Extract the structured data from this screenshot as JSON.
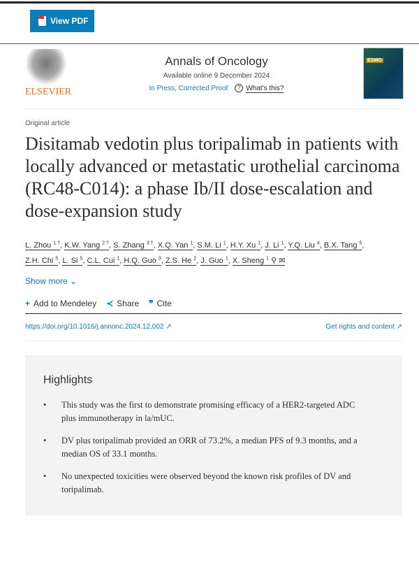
{
  "toolbar": {
    "view_pdf": "View PDF"
  },
  "header": {
    "publisher": "ELSEVIER",
    "journal": "Annals of Oncology",
    "available": "Available online 9 December 2024",
    "status": "In Press, Corrected Proof",
    "whats_this": "What's this?",
    "cover_label": "ESMO"
  },
  "article": {
    "type": "Original article",
    "title": "Disitamab vedotin plus toripalimab in patients with locally advanced or metastatic urothelial carcinoma (RC48-C014): a phase Ib/II dose-escalation and dose-expansion study",
    "authors": [
      {
        "name": "L. Zhou",
        "sup": "1 †"
      },
      {
        "name": "K.W. Yang",
        "sup": "2 †"
      },
      {
        "name": "S. Zhang",
        "sup": "3 †"
      },
      {
        "name": "X.Q. Yan",
        "sup": "1"
      },
      {
        "name": "S.M. Li",
        "sup": "1"
      },
      {
        "name": "H.Y. Xu",
        "sup": "1"
      },
      {
        "name": "J. Li",
        "sup": "1"
      },
      {
        "name": "Y.Q. Liu",
        "sup": "4"
      },
      {
        "name": "B.X. Tang",
        "sup": "5"
      },
      {
        "name": "Z.H. Chi",
        "sup": "5"
      },
      {
        "name": "L. Si",
        "sup": "5"
      },
      {
        "name": "C.L. Cui",
        "sup": "1"
      },
      {
        "name": "H.Q. Guo",
        "sup": "3"
      },
      {
        "name": "Z.S. He",
        "sup": "2"
      },
      {
        "name": "J. Guo",
        "sup": "1"
      },
      {
        "name": "X. Sheng",
        "sup": "1"
      }
    ],
    "show_more": "Show more",
    "actions": {
      "mendeley": "Add to Mendeley",
      "share": "Share",
      "cite": "Cite"
    },
    "doi": "https://doi.org/10.1016/j.annonc.2024.12.002 ↗",
    "rights": "Get rights and content ↗"
  },
  "highlights": {
    "heading": "Highlights",
    "items": [
      "This study was the first to demonstrate promising efficacy of a HER2-targeted ADC plus immunotherapy in la/mUC.",
      "DV plus toripalimab provided an ORR of 73.2%, a median PFS of 9.3 months, and a median OS of 33.1 months.",
      "No unexpected toxicities were observed beyond the known risk profiles of DV and toripalimab."
    ]
  }
}
